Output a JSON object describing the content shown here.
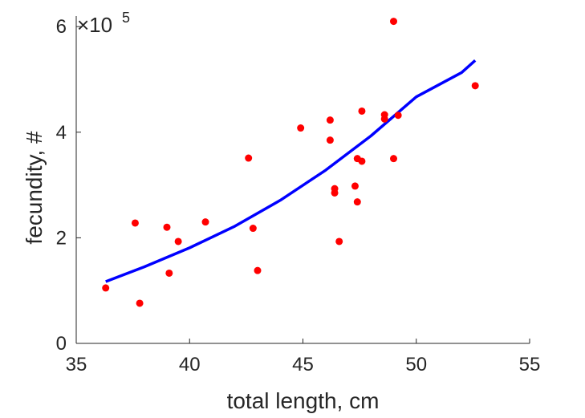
{
  "chart_data": {
    "type": "scatter",
    "title": "",
    "xlabel": "total length, cm",
    "ylabel": "fecundity, #",
    "xlim": [
      35,
      55
    ],
    "ylim": [
      0,
      620000
    ],
    "x_ticks": [
      "35",
      "40",
      "45",
      "50",
      "55"
    ],
    "y_ticks": [
      "0",
      "2",
      "4",
      "6"
    ],
    "y_exponent": {
      "prefix": "×10",
      "power": "5"
    },
    "grid": false,
    "legend": "none",
    "series": [
      {
        "kind": "scatter",
        "color": "#ff0000",
        "points": [
          [
            36.3,
            105000
          ],
          [
            37.6,
            228000
          ],
          [
            37.8,
            76000
          ],
          [
            39.0,
            220000
          ],
          [
            39.1,
            133000
          ],
          [
            39.5,
            193000
          ],
          [
            40.7,
            230000
          ],
          [
            42.6,
            351000
          ],
          [
            42.8,
            218000
          ],
          [
            43.0,
            138000
          ],
          [
            44.9,
            408000
          ],
          [
            46.2,
            423000
          ],
          [
            46.2,
            385000
          ],
          [
            46.4,
            293000
          ],
          [
            46.4,
            285000
          ],
          [
            46.6,
            193000
          ],
          [
            47.3,
            298000
          ],
          [
            47.4,
            350000
          ],
          [
            47.4,
            268000
          ],
          [
            47.6,
            440000
          ],
          [
            47.6,
            345000
          ],
          [
            48.6,
            433000
          ],
          [
            48.6,
            425000
          ],
          [
            49.0,
            610000
          ],
          [
            49.0,
            350000
          ],
          [
            49.2,
            432000
          ],
          [
            52.6,
            488000
          ]
        ]
      },
      {
        "kind": "line",
        "color": "#0000ff",
        "x": [
          36.3,
          38,
          40,
          42,
          44,
          46,
          48,
          50,
          52,
          52.6
        ],
        "values": [
          117000,
          145000,
          181000,
          222000,
          271000,
          328000,
          393000,
          467000,
          513000,
          536000
        ]
      }
    ]
  }
}
